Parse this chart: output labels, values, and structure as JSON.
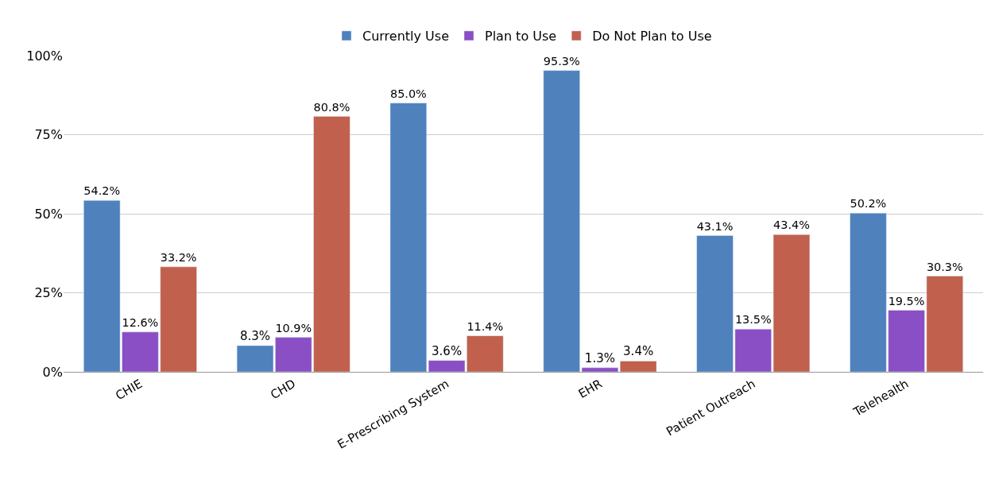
{
  "chart_data": {
    "type": "bar",
    "categories": [
      "CHIE",
      "CHD",
      "E-Prescribing System",
      "EHR",
      "Patient Outreach",
      "Telehealth"
    ],
    "series": [
      {
        "name": "Currently Use",
        "color": "#4f81bd",
        "values": [
          54.2,
          8.3,
          85.0,
          95.3,
          43.1,
          50.2
        ],
        "value_labels": [
          "54.2%",
          "8.3%",
          "85.0%",
          "95.3%",
          "43.1%",
          "50.2%"
        ]
      },
      {
        "name": "Plan to Use",
        "color": "#8a4fc4",
        "values": [
          12.6,
          10.9,
          3.6,
          1.3,
          13.5,
          19.5
        ],
        "value_labels": [
          "12.6%",
          "10.9%",
          "3.6%",
          "1.3%",
          "13.5%",
          "19.5%"
        ]
      },
      {
        "name": "Do Not Plan to Use",
        "color": "#c0604d",
        "values": [
          33.2,
          80.8,
          11.4,
          3.4,
          43.4,
          30.3
        ],
        "value_labels": [
          "33.2%",
          "80.8%",
          "11.4%",
          "3.4%",
          "43.4%",
          "30.3%"
        ]
      }
    ],
    "ylim": [
      0,
      100
    ],
    "yticks": [
      {
        "value": 0,
        "label": "0%"
      },
      {
        "value": 25,
        "label": "25%"
      },
      {
        "value": 50,
        "label": "50%"
      },
      {
        "value": 75,
        "label": "75%"
      },
      {
        "value": 100,
        "label": "100%"
      }
    ],
    "grid": "y",
    "legend": "top"
  }
}
